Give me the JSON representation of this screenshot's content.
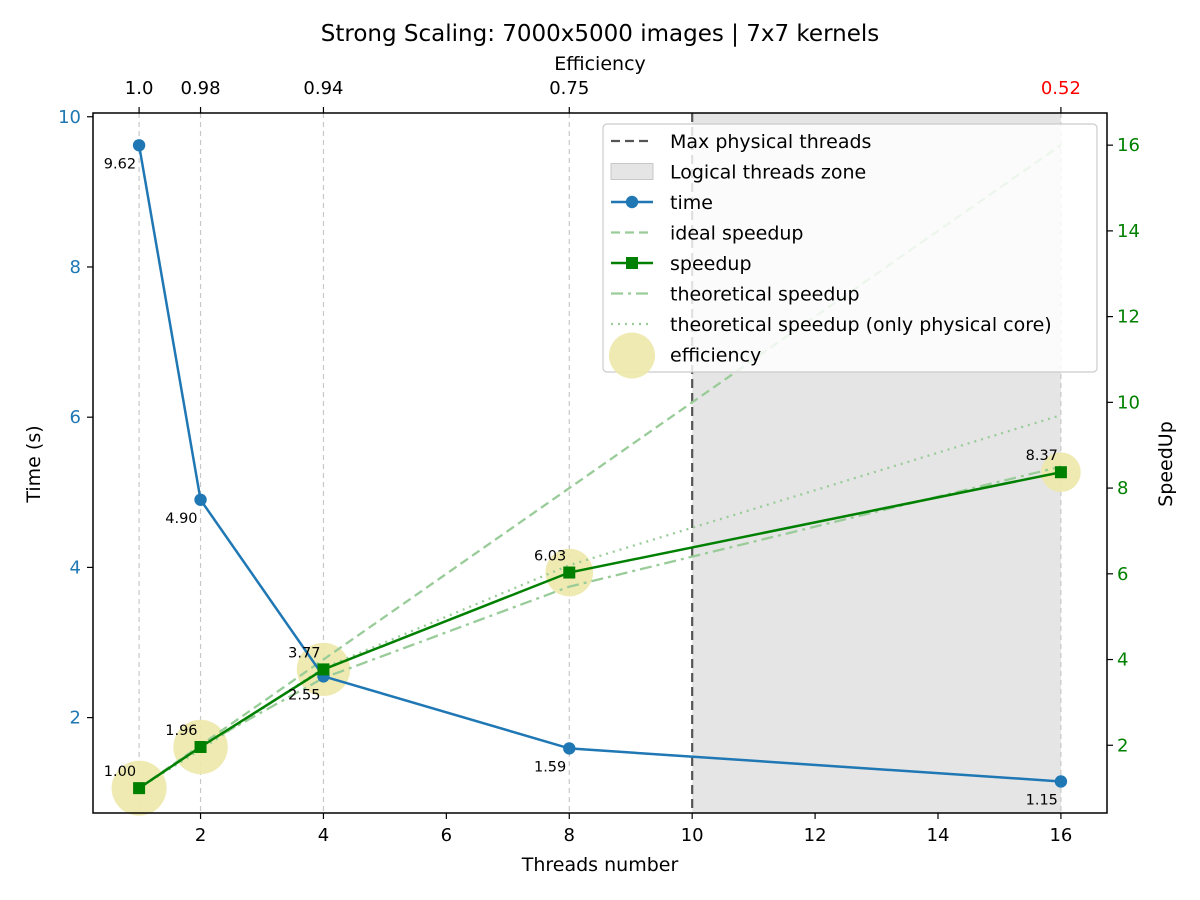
{
  "chart_data": {
    "type": "line",
    "title": "Strong Scaling: 7000x5000 images | 7x7 kernels",
    "xlabel": "Threads number",
    "ylabel_left": "Time (s)",
    "ylabel_right": "SpeedUp",
    "top_axis_label": "Efficiency",
    "xlim": [
      0.25,
      16.75
    ],
    "ylim_left": [
      0.73,
      10.05
    ],
    "ylim_right": [
      0.42,
      16.75
    ],
    "x_ticks": [
      2,
      4,
      6,
      8,
      10,
      12,
      14,
      16
    ],
    "y_left_ticks": [
      2,
      4,
      6,
      8,
      10
    ],
    "y_right_ticks": [
      2,
      4,
      6,
      8,
      10,
      12,
      14,
      16
    ],
    "threads": [
      1,
      2,
      4,
      8,
      16
    ],
    "max_physical_threads": 10,
    "logical_zone": [
      10,
      16
    ],
    "top_tick_labels": [
      "1.0",
      "0.98",
      "0.94",
      "0.75",
      "0.52"
    ],
    "series": [
      {
        "name": "time",
        "axis": "left",
        "color": "#1f77b4",
        "style": "solid",
        "marker": "circle",
        "x": [
          1,
          2,
          4,
          8,
          16
        ],
        "values": [
          9.62,
          4.9,
          2.55,
          1.59,
          1.15
        ],
        "labels": [
          "9.62",
          "4.90",
          "2.55",
          "1.59",
          "1.15"
        ]
      },
      {
        "name": "ideal speedup",
        "axis": "right",
        "color": "#99cc99",
        "style": "dashed",
        "x": [
          1,
          2,
          4,
          8,
          16
        ],
        "values": [
          1,
          2,
          4,
          8,
          16
        ]
      },
      {
        "name": "speedup",
        "axis": "right",
        "color": "#008000",
        "style": "solid",
        "marker": "square",
        "x": [
          1,
          2,
          4,
          8,
          16
        ],
        "values": [
          1.0,
          1.96,
          3.77,
          6.03,
          8.37
        ],
        "labels": [
          "1.00",
          "1.96",
          "3.77",
          "6.03",
          "8.37"
        ]
      },
      {
        "name": "theoretical speedup",
        "axis": "right",
        "color": "#99cc99",
        "style": "dashdot",
        "x": [
          1,
          2,
          4,
          8,
          16
        ],
        "values": [
          1,
          1.98,
          3.57,
          5.7,
          8.5
        ]
      },
      {
        "name": "theoretical speedup (only physical core)",
        "axis": "right",
        "color": "#99cc99",
        "style": "dotted",
        "x": [
          1,
          2,
          4,
          8,
          16
        ],
        "values": [
          1,
          1.9,
          3.8,
          6.2,
          9.7
        ]
      },
      {
        "name": "efficiency",
        "axis": "right",
        "color": "#eee8aa",
        "style": "bubble",
        "x": [
          1,
          2,
          4,
          8,
          16
        ],
        "values": [
          1.0,
          0.98,
          0.94,
          0.75,
          0.52
        ]
      }
    ],
    "legend": {
      "position": "upper-right",
      "entries": [
        {
          "label": "Max physical threads",
          "kind": "dashed-dark"
        },
        {
          "label": "Logical threads zone",
          "kind": "patch"
        },
        {
          "label": "time",
          "kind": "line-circle"
        },
        {
          "label": "ideal speedup",
          "kind": "dashed-light"
        },
        {
          "label": "speedup",
          "kind": "line-square"
        },
        {
          "label": "theoretical speedup",
          "kind": "dashdot-light"
        },
        {
          "label": "theoretical speedup (only physical core)",
          "kind": "dotted-light"
        },
        {
          "label": "efficiency",
          "kind": "bubble"
        }
      ]
    },
    "colors": {
      "time": "#1f77b4",
      "speedup": "#008000",
      "light_green": "#99cc99",
      "efficiency": "#eee8aa",
      "zone": "#e5e5e5",
      "maxline": "#555555",
      "warn": "#ff0000"
    }
  }
}
